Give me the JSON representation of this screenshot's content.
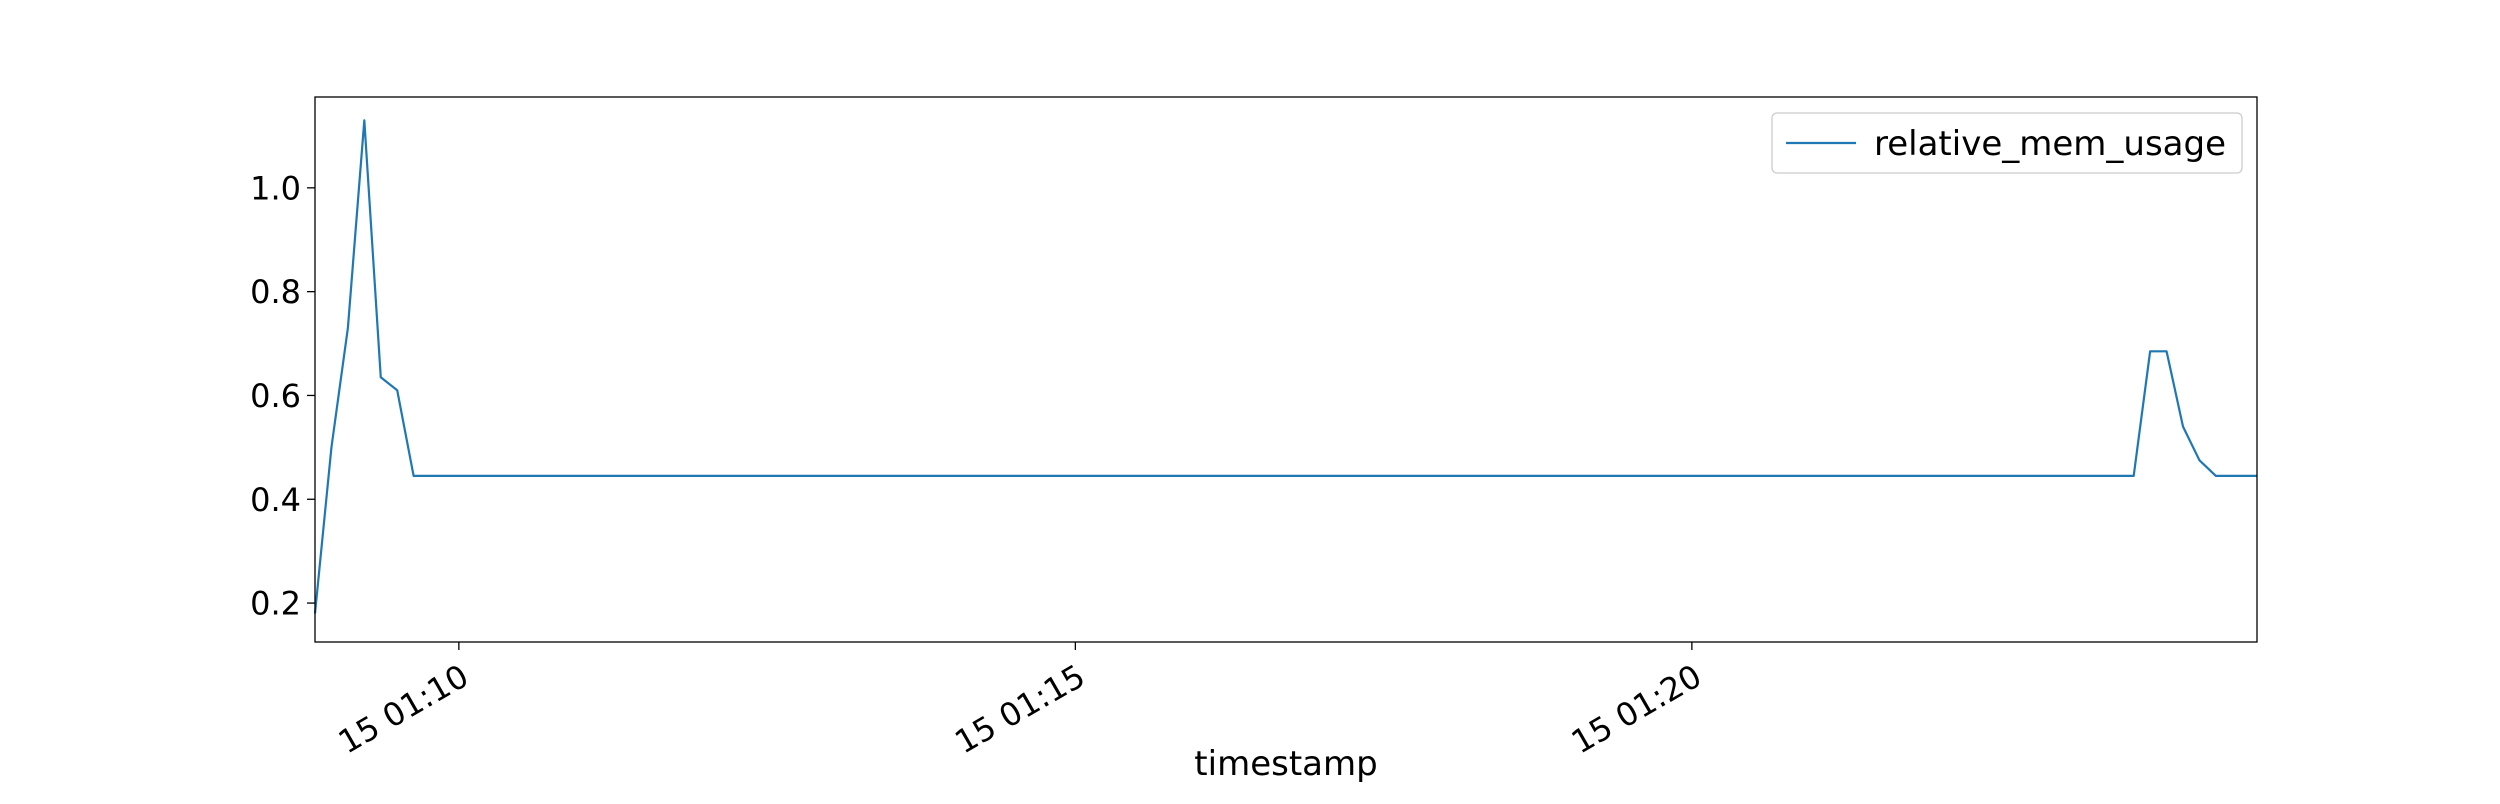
{
  "chart_data": {
    "type": "line",
    "title": "",
    "xlabel": "timestamp",
    "ylabel": "",
    "x_tick_labels": [
      "15 01:10",
      "15 01:15",
      "15 01:20"
    ],
    "x_ticks": [
      "01:10:00",
      "01:15:00",
      "01:20:00"
    ],
    "xlim": [
      "01:08:50",
      "01:24:35"
    ],
    "ylim": [
      0.125,
      1.175
    ],
    "y_ticks": [
      0.2,
      0.4,
      0.6,
      0.8,
      1.0
    ],
    "y_tick_labels": [
      "0.2",
      "0.4",
      "0.6",
      "0.8",
      "1.0"
    ],
    "grid": false,
    "legend_position": "top-right",
    "colors": {
      "series": "#1f77b4",
      "axes": "#000000",
      "background": "#ffffff"
    },
    "x": [
      "01:08:50",
      "01:08:58",
      "01:09:06",
      "01:09:14",
      "01:09:22",
      "01:09:30",
      "01:09:38",
      "01:10:00",
      "01:12:00",
      "01:14:00",
      "01:16:00",
      "01:18:00",
      "01:20:00",
      "01:22:00",
      "01:23:35",
      "01:23:43",
      "01:23:51",
      "01:23:59",
      "01:24:07",
      "01:24:15",
      "01:24:35"
    ],
    "series": [
      {
        "name": "relative_mem_usage",
        "values": [
          0.18,
          0.5,
          0.73,
          1.13,
          0.635,
          0.61,
          0.445,
          0.445,
          0.445,
          0.445,
          0.445,
          0.445,
          0.445,
          0.445,
          0.445,
          0.685,
          0.685,
          0.54,
          0.475,
          0.445,
          0.445
        ]
      }
    ]
  }
}
